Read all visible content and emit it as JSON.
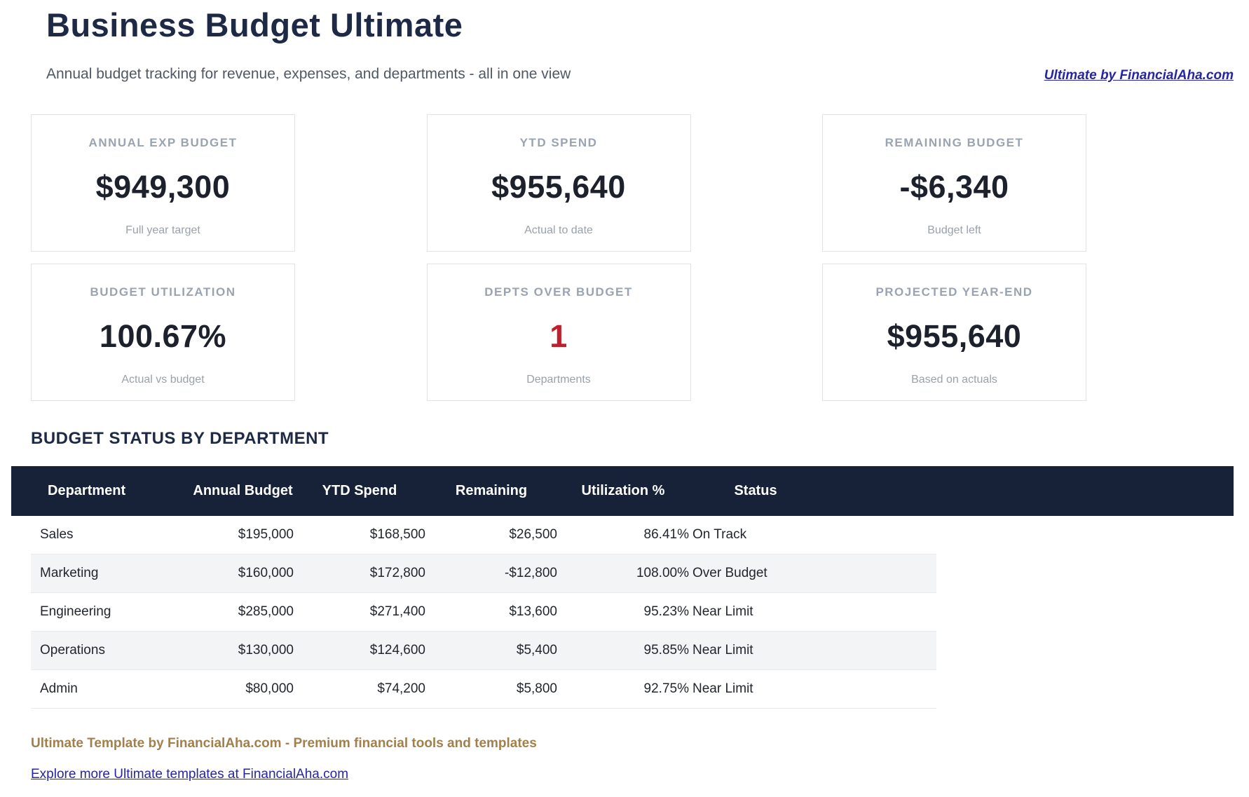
{
  "header": {
    "title": "Business Budget Ultimate",
    "subtitle": "Annual budget tracking for revenue, expenses, and departments - all in one view",
    "brand_link": "Ultimate by FinancialAha.com"
  },
  "kpi_cards": [
    {
      "label": "ANNUAL EXP BUDGET",
      "value": "$949,300",
      "caption": "Full year target",
      "value_color": "dark"
    },
    {
      "label": "YTD SPEND",
      "value": "$955,640",
      "caption": "Actual to date",
      "value_color": "dark"
    },
    {
      "label": "REMAINING BUDGET",
      "value": "-$6,340",
      "caption": "Budget left",
      "value_color": "dark"
    },
    {
      "label": "BUDGET UTILIZATION",
      "value": "100.67%",
      "caption": "Actual vs budget",
      "value_color": "dark"
    },
    {
      "label": "DEPTS OVER BUDGET",
      "value": "1",
      "caption": "Departments",
      "value_color": "red"
    },
    {
      "label": "PROJECTED YEAR-END",
      "value": "$955,640",
      "caption": "Based on actuals",
      "value_color": "dark"
    }
  ],
  "table": {
    "section_title": "BUDGET STATUS BY DEPARTMENT",
    "columns": [
      "Department",
      "Annual Budget",
      "YTD Spend",
      "Remaining",
      "Utilization %",
      "Status"
    ],
    "rows": [
      {
        "department": "Sales",
        "annual_budget": "$195,000",
        "ytd_spend": "$168,500",
        "remaining": "$26,500",
        "utilization": "86.41%",
        "status": "On Track"
      },
      {
        "department": "Marketing",
        "annual_budget": "$160,000",
        "ytd_spend": "$172,800",
        "remaining": "-$12,800",
        "utilization": "108.00%",
        "status": "Over Budget"
      },
      {
        "department": "Engineering",
        "annual_budget": "$285,000",
        "ytd_spend": "$271,400",
        "remaining": "$13,600",
        "utilization": "95.23%",
        "status": "Near Limit"
      },
      {
        "department": "Operations",
        "annual_budget": "$130,000",
        "ytd_spend": "$124,600",
        "remaining": "$5,400",
        "utilization": "95.85%",
        "status": "Near Limit"
      },
      {
        "department": "Admin",
        "annual_budget": "$80,000",
        "ytd_spend": "$74,200",
        "remaining": "$5,800",
        "utilization": "92.75%",
        "status": "Near Limit"
      }
    ]
  },
  "footer": {
    "tagline": "Ultimate Template by FinancialAha.com - Premium financial tools and templates",
    "link": "Explore more Ultimate templates at FinancialAha.com"
  },
  "colors": {
    "title_navy": "#1e2a45",
    "subtitle_gray": "#4f5864",
    "card_label_gray": "#9aa3b2",
    "card_value_dark": "#1c212b",
    "alert_red": "#bf202d",
    "table_header_bg": "#172138",
    "row_stripe": "#f2f4f6",
    "footer_gold": "#a1804d",
    "link_blue": "#2525a5"
  }
}
